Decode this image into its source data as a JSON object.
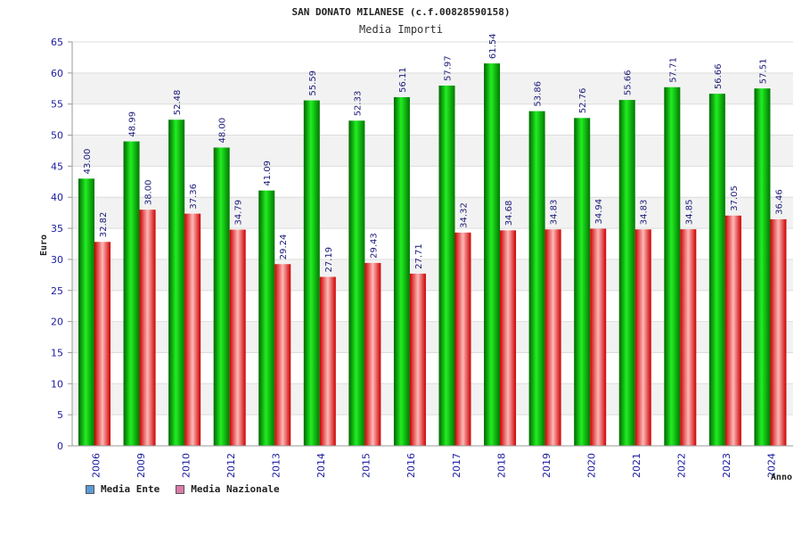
{
  "chart_data": {
    "type": "bar",
    "title": "SAN DONATO MILANESE (c.f.00828590158)",
    "subtitle": "Media Importi",
    "ylabel": "Euro",
    "xlabel": "Anno",
    "ylim": [
      0,
      65
    ],
    "yticks": [
      0,
      5,
      10,
      15,
      20,
      25,
      30,
      35,
      40,
      45,
      50,
      55,
      60,
      65
    ],
    "categories": [
      "2006",
      "2009",
      "2010",
      "2012",
      "2013",
      "2014",
      "2015",
      "2016",
      "2017",
      "2018",
      "2019",
      "2020",
      "2021",
      "2022",
      "2023",
      "2024"
    ],
    "series": [
      {
        "name": "Media Ente",
        "color": "#00cc00",
        "values": [
          43.0,
          48.99,
          52.48,
          48.0,
          41.09,
          55.59,
          52.33,
          56.11,
          57.97,
          61.54,
          53.86,
          52.76,
          55.66,
          57.71,
          56.66,
          57.51
        ],
        "labels": [
          "43.00",
          "48.99",
          "52.48",
          "48.00",
          "41.09",
          "55.59",
          "52.33",
          "56.11",
          "57.97",
          "61.54",
          "53.86",
          "52.76",
          "55.66",
          "57.71",
          "56.66",
          "57.51"
        ]
      },
      {
        "name": "Media Nazionale",
        "color": "#e8202a",
        "values": [
          32.82,
          38.0,
          37.36,
          34.79,
          29.24,
          27.19,
          29.43,
          27.71,
          34.32,
          34.68,
          34.83,
          34.94,
          34.83,
          34.85,
          37.05,
          36.46
        ],
        "labels": [
          "32.82",
          "38.00",
          "37.36",
          "34.79",
          "29.24",
          "27.19",
          "29.43",
          "27.71",
          "34.32",
          "34.68",
          "34.83",
          "34.94",
          "34.83",
          "34.85",
          "37.05",
          "36.46"
        ]
      }
    ],
    "grid": true,
    "legend": [
      {
        "label": "Media Ente",
        "color": "#5b9bd5"
      },
      {
        "label": "Media Nazionale",
        "color": "#d97ba7"
      }
    ],
    "legend_position": "bottom-left"
  }
}
